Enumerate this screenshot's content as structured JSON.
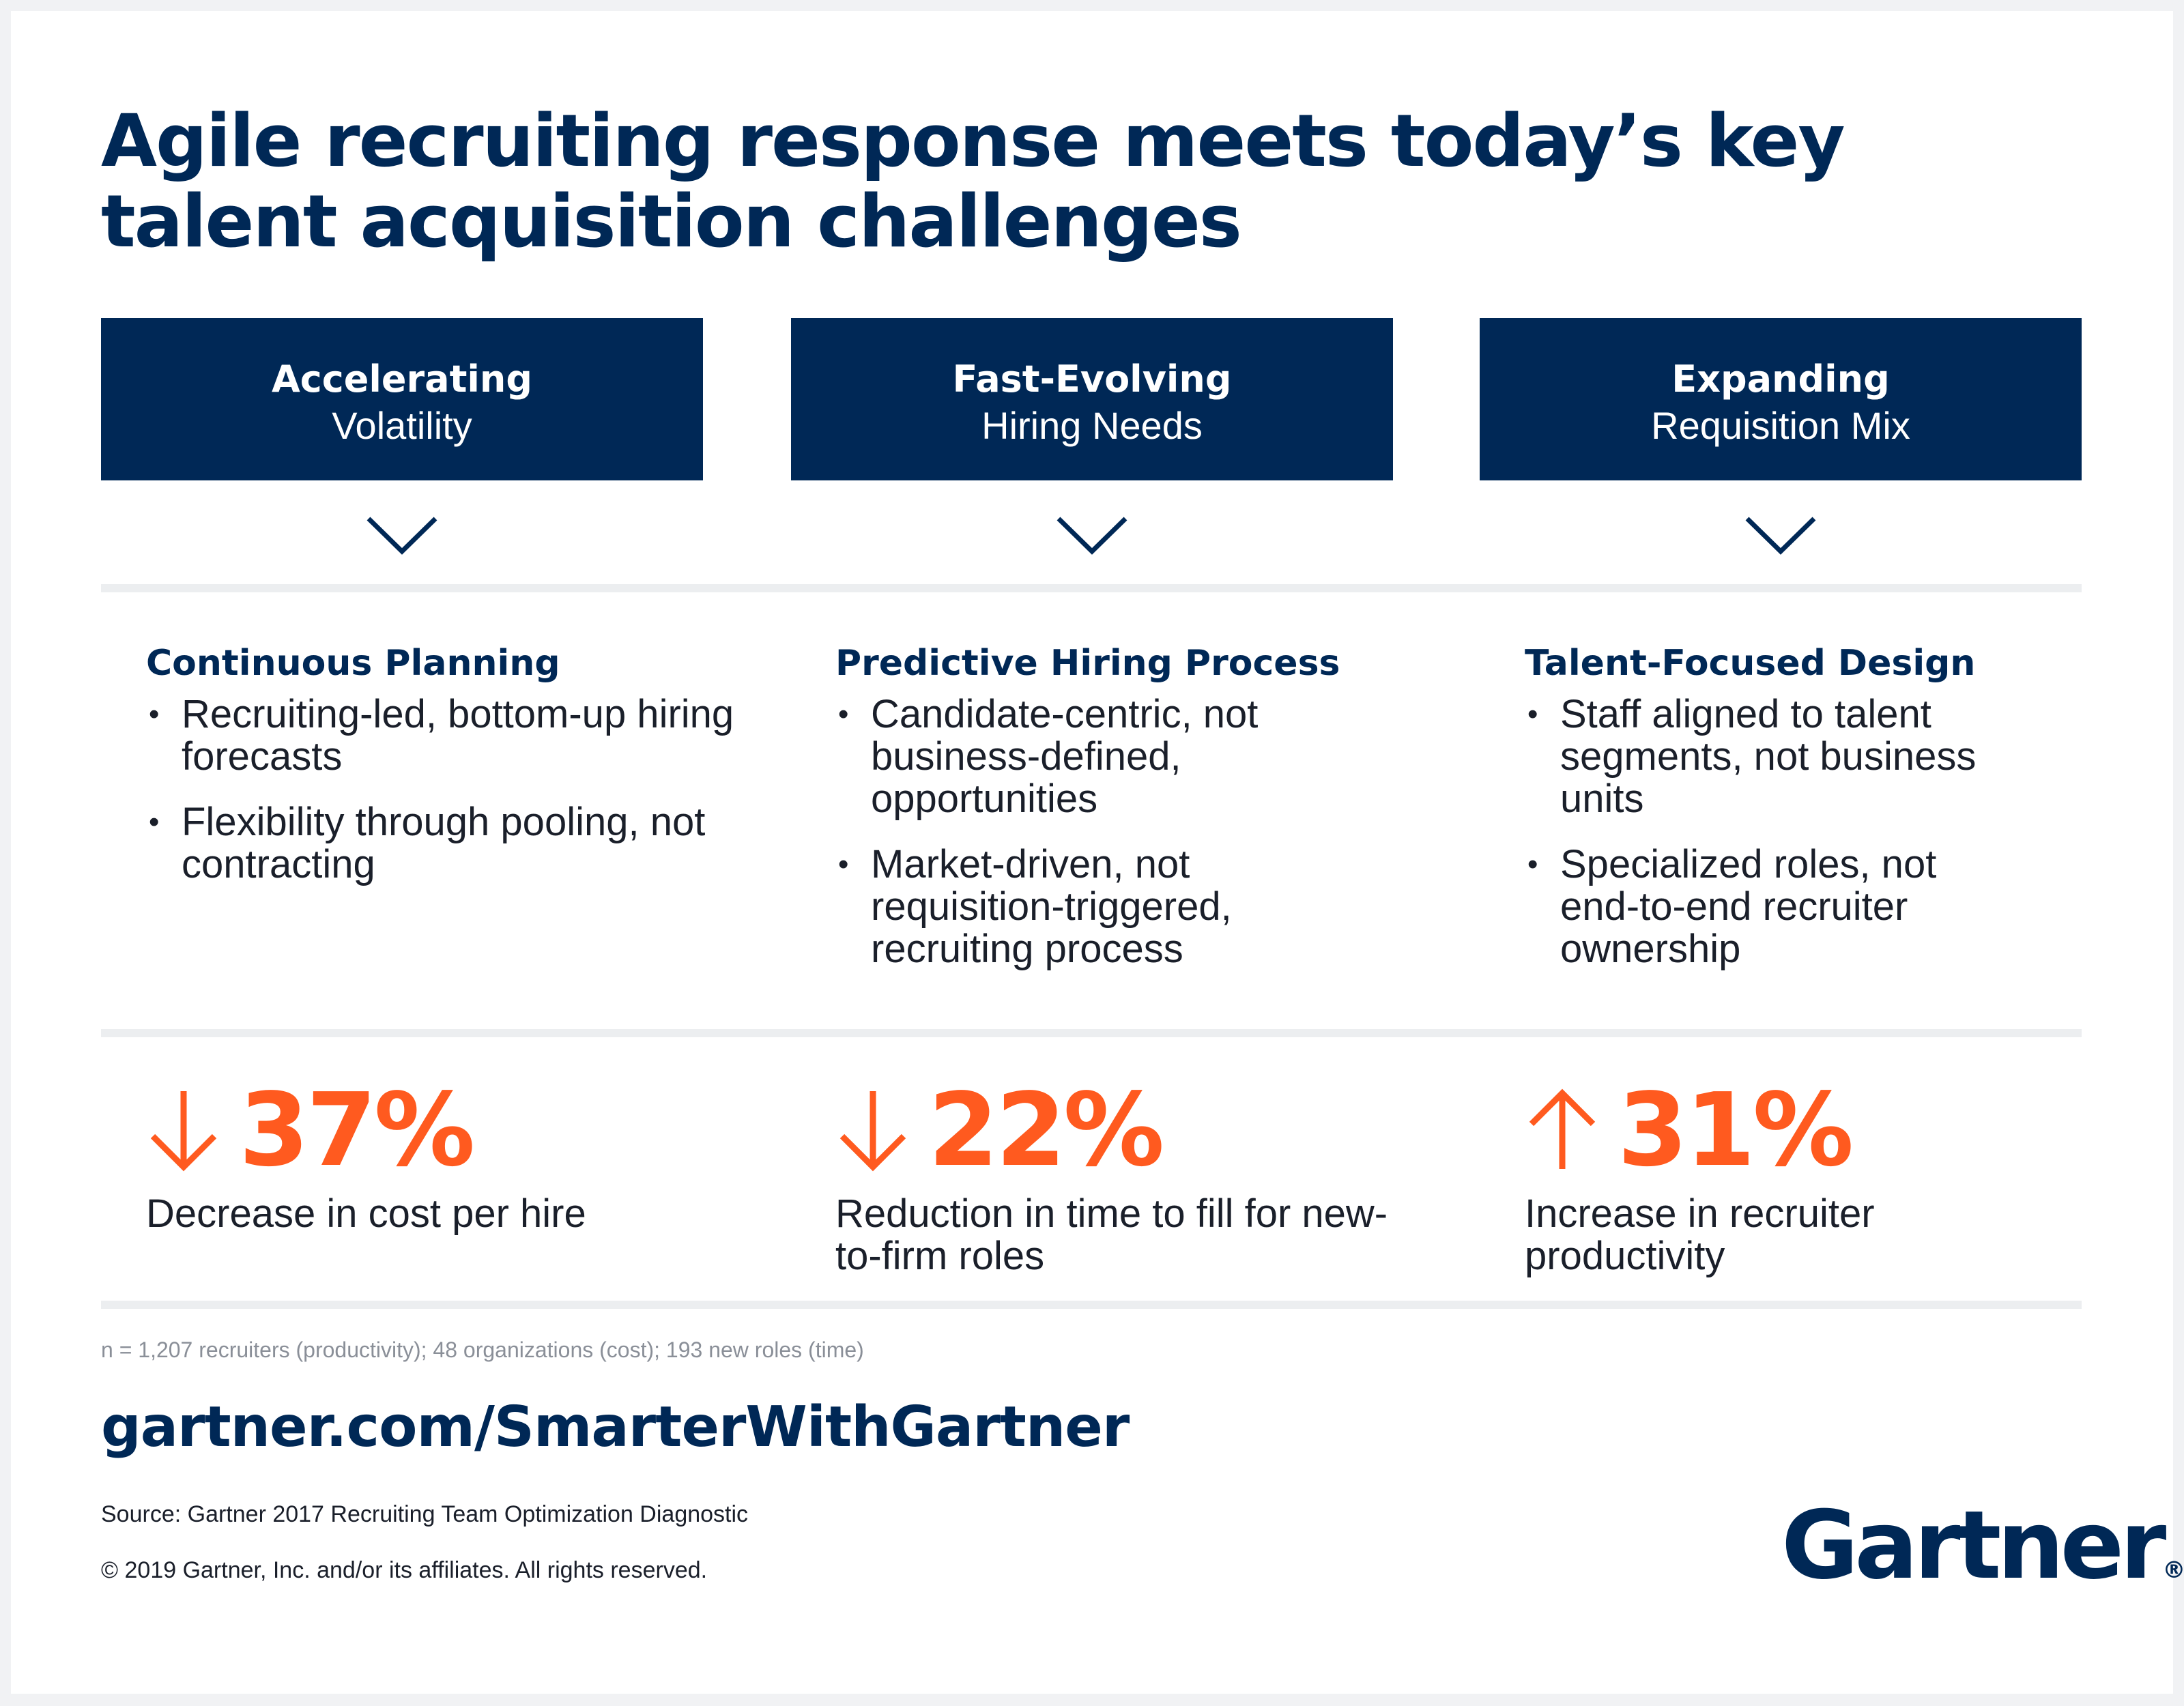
{
  "title": "Agile recruiting response meets today’s key talent acquisition challenges",
  "challenges": [
    {
      "line1": "Accelerating",
      "line2": "Volatility"
    },
    {
      "line1": "Fast-Evolving",
      "line2": "Hiring Needs"
    },
    {
      "line1": "Expanding",
      "line2": "Requisition Mix"
    }
  ],
  "solutions": [
    {
      "title": "Continuous Planning",
      "bullets": [
        "Recruiting-led, bottom-up hiring forecasts",
        "Flexibility through pooling, not contracting"
      ]
    },
    {
      "title": "Predictive Hiring Process",
      "bullets": [
        "Candidate-centric, not business-defined, opportunities",
        "Market-driven, not requisition-triggered, recruiting process"
      ]
    },
    {
      "title": "Talent-Focused Design",
      "bullets": [
        "Staff aligned to talent segments, not business units",
        "Specialized roles, not end-to-end recruiter ownership"
      ]
    }
  ],
  "stats": [
    {
      "direction": "down",
      "value": "37%",
      "description": "Decrease in cost per hire"
    },
    {
      "direction": "down",
      "value": "22%",
      "description": "Reduction in time to fill for new-to-firm roles"
    },
    {
      "direction": "up",
      "value": "31%",
      "description": "Increase in recruiter productivity"
    }
  ],
  "footnote": "n = 1,207 recruiters (productivity); 48 organizations (cost); 193 new roles (time)",
  "url": "gartner.com/SmarterWithGartner",
  "source": "Source: Gartner 2017 Recruiting Team Optimization Diagnostic",
  "copyright": "© 2019 Gartner, Inc. and/or its affiliates. All rights reserved.",
  "logo": {
    "text": "Gartner",
    "mark": "®"
  },
  "colors": {
    "navy": "#002856",
    "orange": "#ff5a1f",
    "divider": "#eceef0",
    "background": "#f1f2f4"
  },
  "icons": {
    "chevron": "chevron-down-icon",
    "down": "arrow-down-icon",
    "up": "arrow-up-icon"
  }
}
